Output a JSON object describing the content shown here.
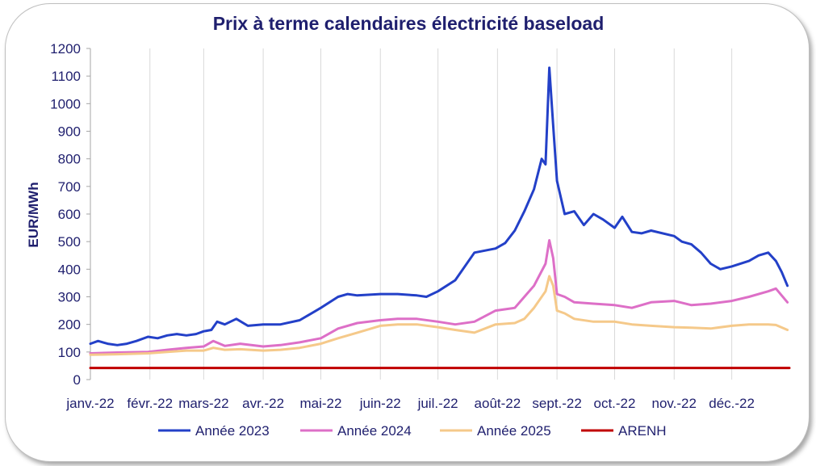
{
  "chart_data": {
    "type": "line",
    "title": "Prix à terme calendaires électricité baseload",
    "ylabel": "EUR/MWh",
    "xlabel": "",
    "ylim": [
      0,
      1200
    ],
    "y_ticks": [
      "0",
      "100",
      "200",
      "300",
      "400",
      "500",
      "600",
      "700",
      "800",
      "900",
      "1000",
      "1100",
      "1200"
    ],
    "x_ticks": [
      "janv.-22",
      "févr.-22",
      "mars-22",
      "avr.-22",
      "mai-22",
      "juin-22",
      "juil.-22",
      "août-22",
      "sept.-22",
      "oct.-22",
      "nov.-22",
      "déc.-22"
    ],
    "grid": "vertical",
    "legend_position": "bottom",
    "series": [
      {
        "name": "Année 2023",
        "color": "#2340c8",
        "x": [
          "2022-01-01",
          "2022-01-05",
          "2022-01-10",
          "2022-01-15",
          "2022-01-20",
          "2022-01-25",
          "2022-01-31",
          "2022-02-05",
          "2022-02-10",
          "2022-02-15",
          "2022-02-20",
          "2022-02-25",
          "2022-03-01",
          "2022-03-05",
          "2022-03-08",
          "2022-03-12",
          "2022-03-18",
          "2022-03-24",
          "2022-04-01",
          "2022-04-10",
          "2022-04-20",
          "2022-05-01",
          "2022-05-10",
          "2022-05-15",
          "2022-05-20",
          "2022-06-01",
          "2022-06-10",
          "2022-06-20",
          "2022-06-25",
          "2022-07-01",
          "2022-07-10",
          "2022-07-20",
          "2022-07-31",
          "2022-08-05",
          "2022-08-10",
          "2022-08-15",
          "2022-08-20",
          "2022-08-24",
          "2022-08-26",
          "2022-08-28",
          "2022-08-30",
          "2022-09-01",
          "2022-09-05",
          "2022-09-10",
          "2022-09-15",
          "2022-09-20",
          "2022-09-25",
          "2022-10-01",
          "2022-10-05",
          "2022-10-10",
          "2022-10-15",
          "2022-10-20",
          "2022-11-01",
          "2022-11-05",
          "2022-11-10",
          "2022-11-15",
          "2022-11-20",
          "2022-11-25",
          "2022-12-01",
          "2022-12-10",
          "2022-12-15",
          "2022-12-20",
          "2022-12-24",
          "2022-12-27",
          "2022-12-30"
        ],
        "values": [
          130,
          140,
          130,
          125,
          130,
          140,
          155,
          150,
          160,
          165,
          160,
          165,
          175,
          180,
          210,
          200,
          220,
          195,
          200,
          200,
          215,
          260,
          300,
          310,
          305,
          310,
          310,
          305,
          300,
          320,
          360,
          460,
          475,
          495,
          540,
          610,
          690,
          800,
          780,
          1130,
          920,
          720,
          600,
          610,
          560,
          600,
          580,
          550,
          590,
          535,
          530,
          540,
          520,
          500,
          490,
          460,
          420,
          400,
          410,
          430,
          450,
          460,
          430,
          390,
          340
        ]
      },
      {
        "name": "Année 2024",
        "color": "#dd6fc7",
        "x": [
          "2022-01-01",
          "2022-01-15",
          "2022-01-31",
          "2022-02-10",
          "2022-02-20",
          "2022-03-01",
          "2022-03-06",
          "2022-03-12",
          "2022-03-20",
          "2022-04-01",
          "2022-04-10",
          "2022-04-20",
          "2022-05-01",
          "2022-05-10",
          "2022-05-20",
          "2022-06-01",
          "2022-06-10",
          "2022-06-20",
          "2022-07-01",
          "2022-07-10",
          "2022-07-20",
          "2022-07-31",
          "2022-08-10",
          "2022-08-15",
          "2022-08-20",
          "2022-08-26",
          "2022-08-28",
          "2022-08-30",
          "2022-09-01",
          "2022-09-05",
          "2022-09-10",
          "2022-09-20",
          "2022-10-01",
          "2022-10-10",
          "2022-10-20",
          "2022-11-01",
          "2022-11-10",
          "2022-11-20",
          "2022-12-01",
          "2022-12-10",
          "2022-12-20",
          "2022-12-24",
          "2022-12-30"
        ],
        "values": [
          95,
          98,
          100,
          108,
          115,
          120,
          140,
          122,
          130,
          120,
          125,
          135,
          150,
          185,
          205,
          215,
          220,
          220,
          210,
          200,
          210,
          250,
          260,
          300,
          340,
          420,
          505,
          440,
          310,
          300,
          280,
          275,
          270,
          260,
          280,
          285,
          270,
          275,
          285,
          300,
          320,
          330,
          280
        ]
      },
      {
        "name": "Année 2025",
        "color": "#f5c98a",
        "x": [
          "2022-01-01",
          "2022-01-15",
          "2022-01-31",
          "2022-02-10",
          "2022-02-20",
          "2022-03-01",
          "2022-03-06",
          "2022-03-12",
          "2022-03-20",
          "2022-04-01",
          "2022-04-10",
          "2022-04-20",
          "2022-05-01",
          "2022-05-10",
          "2022-05-20",
          "2022-06-01",
          "2022-06-10",
          "2022-06-20",
          "2022-07-01",
          "2022-07-10",
          "2022-07-20",
          "2022-07-31",
          "2022-08-10",
          "2022-08-15",
          "2022-08-20",
          "2022-08-26",
          "2022-08-28",
          "2022-08-30",
          "2022-09-01",
          "2022-09-05",
          "2022-09-10",
          "2022-09-20",
          "2022-10-01",
          "2022-10-10",
          "2022-10-20",
          "2022-11-01",
          "2022-11-10",
          "2022-11-20",
          "2022-12-01",
          "2022-12-10",
          "2022-12-20",
          "2022-12-24",
          "2022-12-30"
        ],
        "values": [
          90,
          92,
          95,
          100,
          105,
          105,
          115,
          108,
          110,
          105,
          108,
          115,
          130,
          150,
          170,
          195,
          200,
          200,
          190,
          180,
          170,
          200,
          205,
          220,
          260,
          320,
          375,
          340,
          250,
          240,
          220,
          210,
          210,
          200,
          195,
          190,
          188,
          185,
          195,
          200,
          200,
          198,
          180
        ]
      },
      {
        "name": "ARENH",
        "color": "#c00000",
        "x": [
          "2022-01-01",
          "2022-12-31"
        ],
        "values": [
          42,
          42
        ]
      }
    ]
  }
}
